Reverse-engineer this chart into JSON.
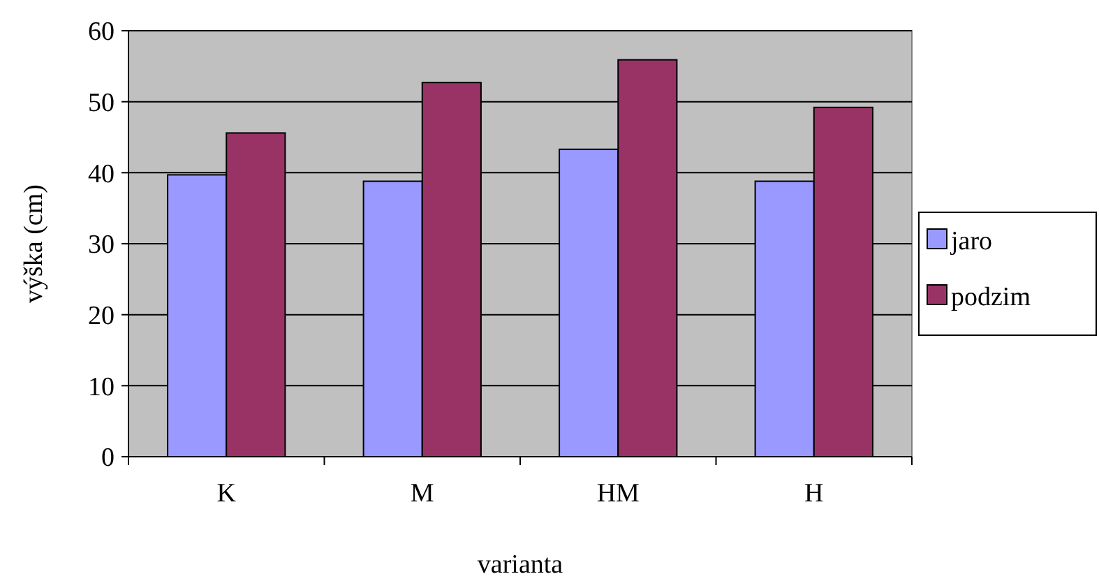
{
  "chart_data": {
    "type": "bar",
    "xlabel": "varianta",
    "ylabel": "výška (cm)",
    "categories": [
      "K",
      "M",
      "HM",
      "H"
    ],
    "series": [
      {
        "name": "jaro",
        "color": "#9999ff",
        "values": [
          39.7,
          38.8,
          43.3,
          38.8
        ]
      },
      {
        "name": "podzim",
        "color": "#993366",
        "values": [
          45.6,
          52.7,
          55.9,
          49.2
        ]
      }
    ],
    "ylim": [
      0,
      60
    ],
    "yticks": [
      0,
      10,
      20,
      30,
      40,
      50,
      60
    ],
    "grid": "y",
    "legend": "right"
  }
}
